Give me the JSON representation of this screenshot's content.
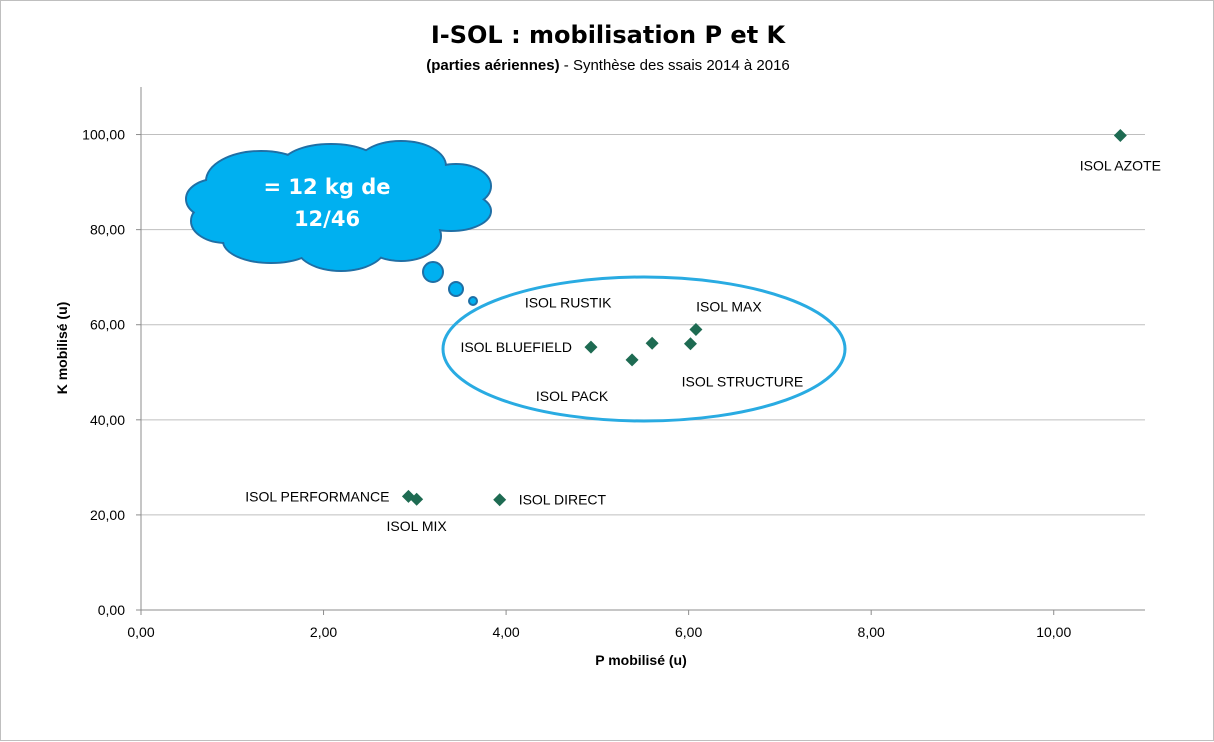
{
  "chart_data": {
    "type": "scatter",
    "title": "I-SOL : mobilisation P et K",
    "subtitle_bold": "(parties aériennes)",
    "subtitle_rest": " - Synthèse des ssais 2014 à 2016",
    "xlabel": "P mobilisé (u)",
    "ylabel": "K mobilisé (u)",
    "xlim": [
      0,
      11
    ],
    "ylim": [
      0,
      110
    ],
    "x_ticks": [
      "0,00",
      "2,00",
      "4,00",
      "6,00",
      "8,00",
      "10,00"
    ],
    "x_tick_values": [
      0,
      2,
      4,
      6,
      8,
      10
    ],
    "y_ticks": [
      "0,00",
      "20,00",
      "40,00",
      "60,00",
      "80,00",
      "100,00"
    ],
    "y_tick_values": [
      0,
      20,
      40,
      60,
      80,
      100
    ],
    "grid": "horizontal",
    "marker_color": "#1e6b52",
    "points": [
      {
        "label": "ISOL AZOTE",
        "x": 10.73,
        "y": 99.8
      },
      {
        "label": "ISOL MAX",
        "x": 6.08,
        "y": 59.0
      },
      {
        "label": "ISOL RUSTIK",
        "x": 5.6,
        "y": 56.1
      },
      {
        "label": "ISOL STRUCTURE",
        "x": 6.02,
        "y": 56.0
      },
      {
        "label": "ISOL BLUEFIELD",
        "x": 4.93,
        "y": 55.3
      },
      {
        "label": "ISOL PACK",
        "x": 5.38,
        "y": 52.6
      },
      {
        "label": "ISOL PERFORMANCE",
        "x": 2.93,
        "y": 23.9
      },
      {
        "label": "ISOL MIX",
        "x": 3.02,
        "y": 23.3
      },
      {
        "label": "ISOL DIRECT",
        "x": 3.93,
        "y": 23.2
      }
    ]
  },
  "annotation": {
    "cloud_line1": "= 12 kg de",
    "cloud_line2": "12/46",
    "cloud_color": "#00b0f0",
    "ellipse_color": "#29abe2"
  }
}
